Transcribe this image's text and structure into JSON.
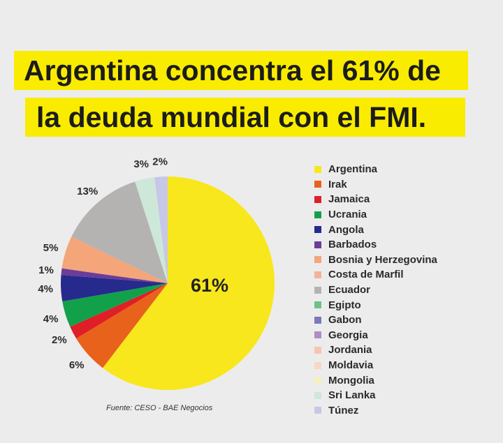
{
  "title": {
    "line1": "Argentina concentra el 61% de",
    "line2": "la deuda mundial con el FMI."
  },
  "source": "Fuente: CESO - BAE Negocios",
  "chart_data": {
    "type": "pie",
    "center_label": "61%",
    "slices": [
      {
        "name": "Argentina",
        "value": 61,
        "label": "",
        "color": "#f8e71c"
      },
      {
        "name": "Irak",
        "value": 6,
        "label": "6%",
        "color": "#e8621c"
      },
      {
        "name": "Jamaica",
        "value": 2,
        "label": "2%",
        "color": "#e01e27"
      },
      {
        "name": "Ucrania",
        "value": 4,
        "label": "4%",
        "color": "#12a14a"
      },
      {
        "name": "Angola",
        "value": 4,
        "label": "4%",
        "color": "#262a8c"
      },
      {
        "name": "Barbados",
        "value": 1,
        "label": "1%",
        "color": "#6a3d9a"
      },
      {
        "name": "Bosnia y Herzegovina",
        "value": 5,
        "label": "5%",
        "color": "#f4a57a"
      },
      {
        "name": "Costa de Marfil",
        "value": 0,
        "label": "",
        "color": "#f2b39a"
      },
      {
        "name": "Ecuador",
        "value": 13,
        "label": "13%",
        "color": "#b5b3b1"
      },
      {
        "name": "Egipto",
        "value": 0,
        "label": "",
        "color": "#6fbf8a"
      },
      {
        "name": "Gabon",
        "value": 0,
        "label": "",
        "color": "#7b78bd"
      },
      {
        "name": "Georgia",
        "value": 0,
        "label": "",
        "color": "#b28ac8"
      },
      {
        "name": "Jordania",
        "value": 0,
        "label": "",
        "color": "#f7c4b4"
      },
      {
        "name": "Moldavia",
        "value": 0,
        "label": "",
        "color": "#f8d7c3"
      },
      {
        "name": "Mongolia",
        "value": 0,
        "label": "",
        "color": "#f5eec0"
      },
      {
        "name": "Sri Lanka",
        "value": 3,
        "label": "3%",
        "color": "#cde8d8"
      },
      {
        "name": "Túnez",
        "value": 2,
        "label": "2%",
        "color": "#c7c7e8"
      }
    ],
    "legend_position": "right"
  }
}
